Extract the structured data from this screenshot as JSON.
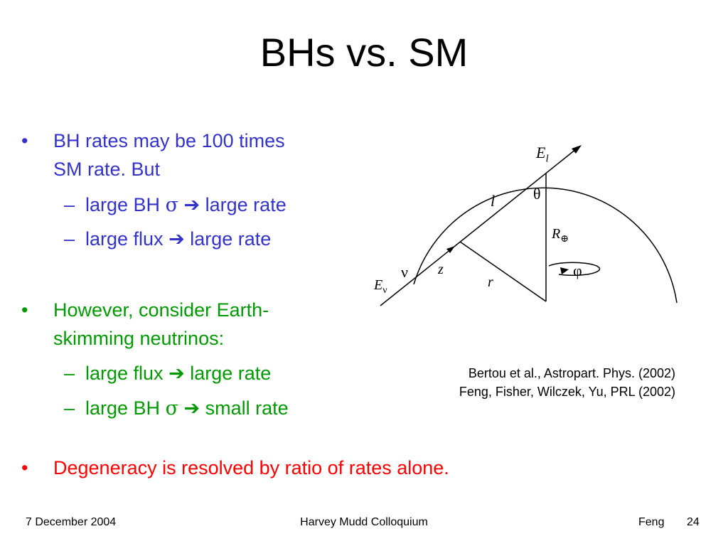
{
  "slide": {
    "title": "BHs vs. SM",
    "bullets": [
      {
        "mark": "•",
        "lines": [
          "BH rates may be 100 times",
          "SM rate.  But"
        ],
        "color": "#3333cc"
      },
      {
        "mark": "•",
        "lines": [
          "However, consider Earth-",
          "skimming neutrinos:"
        ],
        "color": "#009900"
      },
      {
        "mark": "•",
        "lines": [
          "Degeneracy is resolved by ratio of rates alone."
        ],
        "color": "#ff0000"
      }
    ],
    "subbullets_a": [
      {
        "dash": "–",
        "before": "large BH ",
        "sym": "σ",
        "arrow": "➔",
        "after": " large rate"
      },
      {
        "dash": "–",
        "before": "large flux ",
        "sym": "",
        "arrow": "➔",
        "after": " large rate"
      }
    ],
    "subbullets_b": [
      {
        "dash": "–",
        "before": "large flux ",
        "sym": "",
        "arrow": "➔",
        "after": " large rate"
      },
      {
        "dash": "–",
        "before": "large BH ",
        "sym": "σ",
        "arrow": "➔",
        "after": " small rate"
      }
    ]
  },
  "figure": {
    "labels": {
      "E_l": "E",
      "E_l_sub": "l",
      "theta": "θ",
      "l": "l",
      "R": "R",
      "R_sub": "⊕",
      "nu": "ν",
      "z": "z",
      "phi": "φ",
      "E_nu": "E",
      "E_nu_sub": "ν",
      "r": "r"
    }
  },
  "citation": {
    "line1": "Bertou et al., Astropart. Phys. (2002)",
    "line2": "Feng, Fisher, Wilczek, Yu, PRL (2002)"
  },
  "footer": {
    "date": "7 December 2004",
    "venue": "Harvey Mudd Colloquium",
    "author": "Feng",
    "page": "24"
  }
}
